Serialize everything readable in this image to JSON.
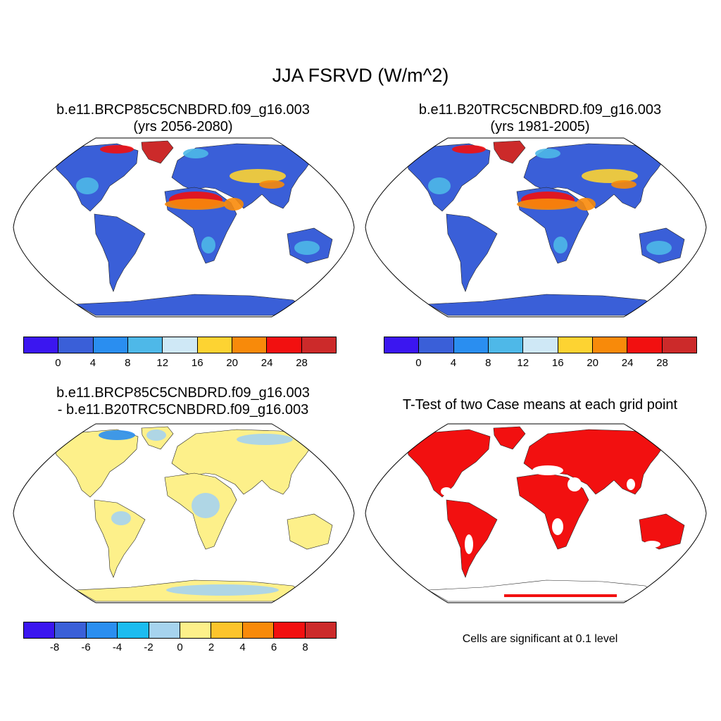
{
  "title": "JJA FSRVD (W/m^2)",
  "panels": [
    {
      "title_line1": "b.e11.BRCP85C5CNBDRD.f09_g16.003",
      "title_line2": "(yrs 2056-2080)",
      "type": "field"
    },
    {
      "title_line1": "b.e11.B20TRC5CNBDRD.f09_g16.003",
      "title_line2": "(yrs 1981-2005)",
      "type": "field"
    },
    {
      "title_line1": "b.e11.BRCP85C5CNBDRD.f09_g16.003",
      "title_line2": "- b.e11.B20TRC5CNBDRD.f09_g16.003",
      "type": "difference"
    },
    {
      "title_line1": "T-Test of two Case means at each grid point",
      "title_line2": "",
      "type": "significance"
    }
  ],
  "colorbars": {
    "field": {
      "colors": [
        "#3b16f0",
        "#3a5fd8",
        "#2a8ef0",
        "#4eb8e8",
        "#cfe8f6",
        "#fdd332",
        "#f88a0a",
        "#f21010",
        "#cc2a2a"
      ],
      "labels": [
        "0",
        "4",
        "8",
        "12",
        "16",
        "20",
        "24",
        "28"
      ]
    },
    "difference": {
      "colors": [
        "#3b16f0",
        "#3a5fd8",
        "#2a8ef0",
        "#1cbcf0",
        "#a6d3ee",
        "#fdf08a",
        "#fcc42c",
        "#f88a0a",
        "#f21010",
        "#cc2a2a"
      ],
      "labels": [
        "-8",
        "-6",
        "-4",
        "-2",
        "0",
        "2",
        "4",
        "6",
        "8"
      ]
    }
  },
  "significance_note": "Cells are significant at 0.1 level",
  "fill_colors": {
    "ocean": "#ffffff",
    "field_base": "#3a5fd8",
    "field_light": "#4eb8e8",
    "field_hot": "#f21010",
    "field_warm": "#f88a0a",
    "field_yellow": "#fdd332",
    "greenland": "#cc2a2a",
    "diff_base": "#fdf08a",
    "diff_light": "#a6d3ee",
    "diff_neg": "#2a8ef0",
    "signif": "#f21010"
  }
}
